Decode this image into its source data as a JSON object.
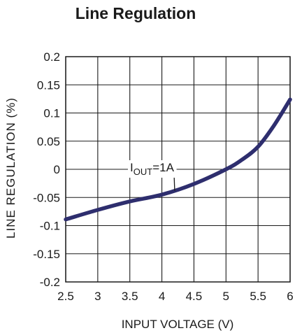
{
  "chart_data": {
    "type": "line",
    "title": "Line Regulation",
    "xlabel": "INPUT VOLTAGE (V)",
    "ylabel": "LINE REGULATION (%)",
    "xlim": [
      2.5,
      6
    ],
    "ylim": [
      -0.2,
      0.2
    ],
    "x_ticks": [
      "2.5",
      "3",
      "3.5",
      "4",
      "4.5",
      "5",
      "5.5",
      "6"
    ],
    "y_ticks": [
      "0.2",
      "0.15",
      "0.1",
      "0.05",
      "0",
      "-0.05",
      "-0.1",
      "-0.15",
      "-0.2"
    ],
    "grid": true,
    "series": [
      {
        "name": "IOUT=1A",
        "x": [
          2.5,
          3.0,
          3.5,
          4.0,
          4.5,
          5.0,
          5.25,
          5.5,
          5.75,
          6.0
        ],
        "y": [
          -0.089,
          -0.072,
          -0.057,
          -0.045,
          -0.026,
          0.0,
          0.017,
          0.04,
          0.078,
          0.124
        ]
      }
    ],
    "annotation": {
      "main": "I",
      "sub": "OUT",
      "rest": "=1A"
    },
    "line_color": "#2e2e6e"
  }
}
